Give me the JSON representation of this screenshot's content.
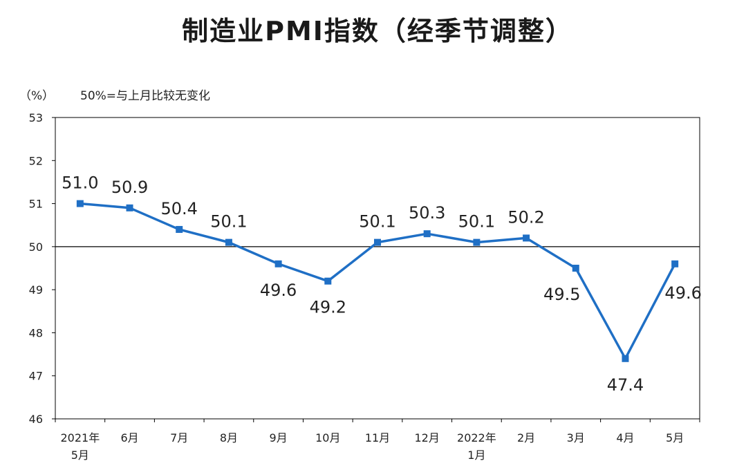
{
  "chart_data": {
    "type": "line",
    "title": "制造业PMI指数（经季节调整）",
    "ylabel": "（%）",
    "annotation": "50%=与上月比较无变化",
    "ylim": [
      46,
      53
    ],
    "yticks": [
      46,
      47,
      48,
      49,
      50,
      51,
      52,
      53
    ],
    "reference_line": 50,
    "categories": [
      [
        "2021年",
        "5月"
      ],
      [
        "6月"
      ],
      [
        "7月"
      ],
      [
        "8月"
      ],
      [
        "9月"
      ],
      [
        "10月"
      ],
      [
        "11月"
      ],
      [
        "12月"
      ],
      [
        "2022年",
        "1月"
      ],
      [
        "2月"
      ],
      [
        "3月"
      ],
      [
        "4月"
      ],
      [
        "5月"
      ]
    ],
    "series": [
      {
        "values": [
          51.0,
          50.9,
          50.4,
          50.1,
          49.6,
          49.2,
          50.1,
          50.3,
          50.1,
          50.2,
          49.5,
          47.4,
          49.6
        ],
        "labels": [
          "51.0",
          "50.9",
          "50.4",
          "50.1",
          "49.6",
          "49.2",
          "50.1",
          "50.3",
          "50.1",
          "50.2",
          "49.5",
          "47.4",
          "49.6"
        ]
      }
    ],
    "colors": {
      "line": "#1f6fc5",
      "axis": "#000000"
    },
    "grid": false
  }
}
